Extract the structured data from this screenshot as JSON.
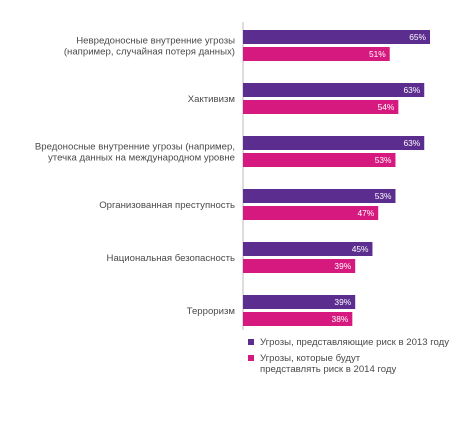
{
  "chart_data": {
    "type": "bar",
    "orientation": "horizontal",
    "categories": [
      [
        "Невредоносные внутренние угрозы",
        "(например, случайная потеря данных)"
      ],
      [
        "Хактивизм"
      ],
      [
        "Вредоносные внутренние угрозы (например,",
        "утечка данных на международном уровне"
      ],
      [
        "Организованная преступность"
      ],
      [
        "Национальная безопасность"
      ],
      [
        "Терроризм"
      ]
    ],
    "series": [
      {
        "name": "Угрозы, представляющие риск в 2013 году",
        "values": [
          65,
          63,
          63,
          53,
          45,
          39
        ],
        "labels": [
          "65%",
          "63%",
          "63%",
          "53%",
          "45%",
          "39%"
        ],
        "color": "#5b2d8e"
      },
      {
        "name": [
          "Угрозы, которые будут",
          "представлять риск в 2014 году"
        ],
        "values": [
          51,
          54,
          53,
          47,
          39,
          38
        ],
        "labels": [
          "51%",
          "54%",
          "53%",
          "47%",
          "39%",
          "38%"
        ],
        "color": "#d6197f"
      }
    ],
    "xlim": [
      0,
      65
    ],
    "grid": false,
    "legend_position": "bottom-right",
    "axis_color": "#bbbbbb"
  }
}
